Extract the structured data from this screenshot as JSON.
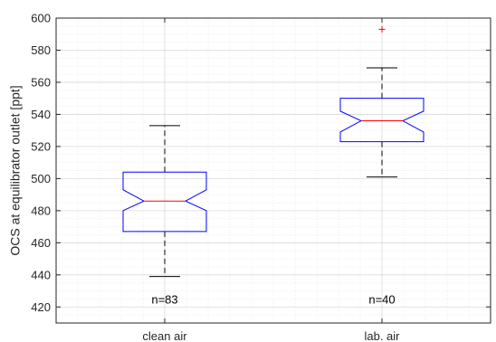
{
  "chart_data": {
    "type": "boxplot",
    "title": "",
    "xlabel": "",
    "ylabel": "OCS at equilibrator outlet [ppt]",
    "ylim": [
      410,
      600
    ],
    "yticks": [
      420,
      440,
      460,
      480,
      500,
      520,
      540,
      560,
      580,
      600
    ],
    "grid": true,
    "minor_grid": true,
    "notched": true,
    "categories": [
      "clean air",
      "lab. air"
    ],
    "boxes": [
      {
        "name": "clean air",
        "whisker_low": 439,
        "q1": 467,
        "median": 486,
        "q3": 504,
        "whisker_high": 533,
        "notch_low": 480,
        "notch_high": 493,
        "outliers": [],
        "count_label": "n=83"
      },
      {
        "name": "lab. air",
        "whisker_low": 501,
        "q1": 523,
        "median": 536,
        "q3": 550,
        "whisker_high": 569,
        "notch_low": 529,
        "notch_high": 542,
        "outliers": [
          593
        ],
        "count_label": "n=40"
      }
    ],
    "count_label_y": 425,
    "colors": {
      "box": "#0000ff",
      "median": "#ff0000",
      "whisker": "#000000",
      "outlier": "#ff0000",
      "grid": "#d9d9d9",
      "axis": "#262626"
    }
  }
}
